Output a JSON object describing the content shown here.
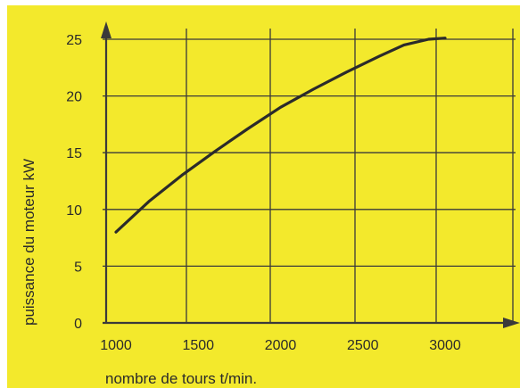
{
  "chart_data": {
    "type": "line",
    "title": "",
    "xlabel": "nombre de tours t/min.",
    "ylabel": "puissance du moteur kW",
    "x_ticks": [
      "1000",
      "1500",
      "2000",
      "2500",
      "3000"
    ],
    "y_ticks": [
      "0",
      "5",
      "10",
      "15",
      "20",
      "25"
    ],
    "xlim": [
      1000,
      3500
    ],
    "ylim": [
      0,
      25
    ],
    "grid": true,
    "legend": "none",
    "series": [
      {
        "x": [
          1000,
          1200,
          1400,
          1600,
          1800,
          2000,
          2200,
          2400,
          2600,
          2750,
          2900,
          3000
        ],
        "y": [
          8.0,
          10.7,
          13.0,
          15.1,
          17.1,
          19.0,
          20.6,
          22.1,
          23.5,
          24.5,
          25.0,
          25.1
        ]
      }
    ],
    "colors": {
      "background": "#f3e92c",
      "grid": "#3a3a3a",
      "line": "#2b2b2b",
      "text": "#2a2a2a"
    }
  }
}
